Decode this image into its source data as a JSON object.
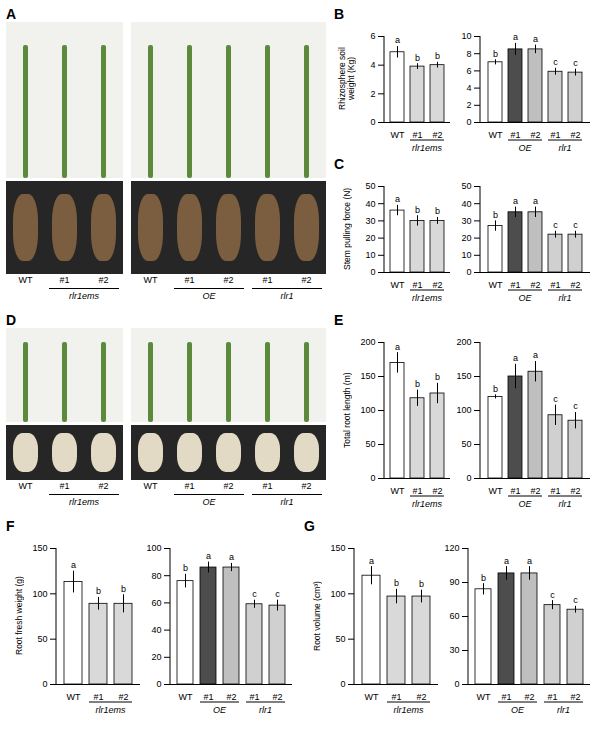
{
  "chart_data": [
    {
      "type": "bar",
      "panel": "B",
      "ylabel": "Rhizosphere soil weight (Kg)",
      "subplots": [
        {
          "categories": [
            "WT",
            "#1",
            "#2"
          ],
          "groups": [
            null,
            "rlr1ems",
            "rlr1ems"
          ],
          "values": [
            4.9,
            3.9,
            4.0
          ],
          "errors": [
            0.4,
            0.2,
            0.2
          ],
          "annotations": [
            "a",
            "b",
            "b"
          ],
          "colors": [
            "#ffffff",
            "#d9d9d9",
            "#d9d9d9"
          ],
          "ylim": [
            0,
            6
          ],
          "yticks": [
            0,
            2,
            4,
            6
          ]
        },
        {
          "categories": [
            "WT",
            "#1",
            "#2",
            "#1",
            "#2"
          ],
          "groups": [
            null,
            "OE",
            "OE",
            "rlr1",
            "rlr1"
          ],
          "values": [
            7.0,
            8.5,
            8.5,
            5.9,
            5.8
          ],
          "errors": [
            0.3,
            0.7,
            0.5,
            0.4,
            0.4
          ],
          "annotations": [
            "b",
            "a",
            "a",
            "c",
            "c"
          ],
          "colors": [
            "#ffffff",
            "#4d4d4d",
            "#bfbfbf",
            "#d0d0d0",
            "#d0d0d0"
          ],
          "ylim": [
            0,
            10
          ],
          "yticks": [
            0,
            2,
            4,
            6,
            8,
            10
          ]
        }
      ]
    },
    {
      "type": "bar",
      "panel": "C",
      "ylabel": "Stem pulling force (N)",
      "subplots": [
        {
          "categories": [
            "WT",
            "#1",
            "#2"
          ],
          "groups": [
            null,
            "rlr1ems",
            "rlr1ems"
          ],
          "values": [
            36,
            30,
            30
          ],
          "errors": [
            3,
            3,
            2
          ],
          "annotations": [
            "a",
            "b",
            "b"
          ],
          "colors": [
            "#ffffff",
            "#d9d9d9",
            "#d9d9d9"
          ],
          "ylim": [
            0,
            50
          ],
          "yticks": [
            0,
            10,
            20,
            30,
            40,
            50
          ]
        },
        {
          "categories": [
            "WT",
            "#1",
            "#2",
            "#1",
            "#2"
          ],
          "groups": [
            null,
            "OE",
            "OE",
            "rlr1",
            "rlr1"
          ],
          "values": [
            27,
            35,
            35,
            22,
            22
          ],
          "errors": [
            3,
            3,
            3,
            2,
            2
          ],
          "annotations": [
            "b",
            "a",
            "a",
            "c",
            "c"
          ],
          "colors": [
            "#ffffff",
            "#4d4d4d",
            "#bfbfbf",
            "#d0d0d0",
            "#d0d0d0"
          ],
          "ylim": [
            0,
            50
          ],
          "yticks": [
            0,
            10,
            20,
            30,
            40,
            50
          ]
        }
      ]
    },
    {
      "type": "bar",
      "panel": "E",
      "ylabel": "Total root length (m)",
      "subplots": [
        {
          "categories": [
            "WT",
            "#1",
            "#2"
          ],
          "groups": [
            null,
            "rlr1ems",
            "rlr1ems"
          ],
          "values": [
            170,
            118,
            125
          ],
          "errors": [
            15,
            12,
            15
          ],
          "annotations": [
            "a",
            "b",
            "b"
          ],
          "colors": [
            "#ffffff",
            "#d9d9d9",
            "#d9d9d9"
          ],
          "ylim": [
            0,
            200
          ],
          "yticks": [
            0,
            50,
            100,
            150,
            200
          ]
        },
        {
          "categories": [
            "WT",
            "#1",
            "#2",
            "#1",
            "#2"
          ],
          "groups": [
            null,
            "OE",
            "OE",
            "rlr1",
            "rlr1"
          ],
          "values": [
            120,
            150,
            157,
            93,
            85
          ],
          "errors": [
            3,
            18,
            15,
            15,
            12
          ],
          "annotations": [
            "b",
            "a",
            "a",
            "c",
            "c"
          ],
          "colors": [
            "#ffffff",
            "#4d4d4d",
            "#bfbfbf",
            "#d0d0d0",
            "#d0d0d0"
          ],
          "ylim": [
            0,
            200
          ],
          "yticks": [
            0,
            50,
            100,
            150,
            200
          ]
        }
      ]
    },
    {
      "type": "bar",
      "panel": "F",
      "ylabel": "Root fresh weight (g)",
      "subplots": [
        {
          "categories": [
            "WT",
            "#1",
            "#2"
          ],
          "groups": [
            null,
            "rlr1ems",
            "rlr1ems"
          ],
          "values": [
            113,
            89,
            89
          ],
          "errors": [
            12,
            7,
            10
          ],
          "annotations": [
            "a",
            "b",
            "b"
          ],
          "colors": [
            "#ffffff",
            "#d9d9d9",
            "#d9d9d9"
          ],
          "ylim": [
            0,
            150
          ],
          "yticks": [
            0,
            50,
            100,
            150
          ]
        },
        {
          "categories": [
            "WT",
            "#1",
            "#2",
            "#1",
            "#2"
          ],
          "groups": [
            null,
            "OE",
            "OE",
            "rlr1",
            "rlr1"
          ],
          "values": [
            76,
            86,
            86,
            59,
            58
          ],
          "errors": [
            5,
            4,
            3,
            3,
            4
          ],
          "annotations": [
            "b",
            "a",
            "a",
            "c",
            "c"
          ],
          "colors": [
            "#ffffff",
            "#4d4d4d",
            "#bfbfbf",
            "#d0d0d0",
            "#d0d0d0"
          ],
          "ylim": [
            0,
            100
          ],
          "yticks": [
            0,
            20,
            40,
            60,
            80,
            100
          ]
        }
      ]
    },
    {
      "type": "bar",
      "panel": "G",
      "ylabel": "Root volume (cm³)",
      "subplots": [
        {
          "categories": [
            "WT",
            "#1",
            "#2"
          ],
          "groups": [
            null,
            "rlr1ems",
            "rlr1ems"
          ],
          "values": [
            120,
            97,
            97
          ],
          "errors": [
            10,
            8,
            7
          ],
          "annotations": [
            "a",
            "b",
            "b"
          ],
          "colors": [
            "#ffffff",
            "#d9d9d9",
            "#d9d9d9"
          ],
          "ylim": [
            0,
            150
          ],
          "yticks": [
            0,
            50,
            100,
            150
          ]
        },
        {
          "categories": [
            "WT",
            "#1",
            "#2",
            "#1",
            "#2"
          ],
          "groups": [
            null,
            "OE",
            "OE",
            "rlr1",
            "rlr1"
          ],
          "values": [
            84,
            98,
            98,
            70,
            66
          ],
          "errors": [
            5,
            6,
            6,
            4,
            3
          ],
          "annotations": [
            "b",
            "a",
            "a",
            "c",
            "c"
          ],
          "colors": [
            "#ffffff",
            "#4d4d4d",
            "#bfbfbf",
            "#d0d0d0",
            "#d0d0d0"
          ],
          "ylim": [
            0,
            120
          ],
          "yticks": [
            0,
            30,
            60,
            90,
            120
          ]
        }
      ]
    }
  ],
  "photos": [
    {
      "panel": "A",
      "images": [
        {
          "categories": [
            "WT",
            "#1",
            "#2"
          ],
          "groups": [
            null,
            "rlr1ems",
            "rlr1ems"
          ]
        },
        {
          "categories": [
            "WT",
            "#1",
            "#2",
            "#1",
            "#2"
          ],
          "groups": [
            null,
            "OE",
            "OE",
            "rlr1",
            "rlr1"
          ]
        }
      ]
    },
    {
      "panel": "D",
      "images": [
        {
          "categories": [
            "WT",
            "#1",
            "#2"
          ],
          "groups": [
            null,
            "rlr1ems",
            "rlr1ems"
          ]
        },
        {
          "categories": [
            "WT",
            "#1",
            "#2",
            "#1",
            "#2"
          ],
          "groups": [
            null,
            "OE",
            "OE",
            "rlr1",
            "rlr1"
          ]
        }
      ]
    }
  ]
}
